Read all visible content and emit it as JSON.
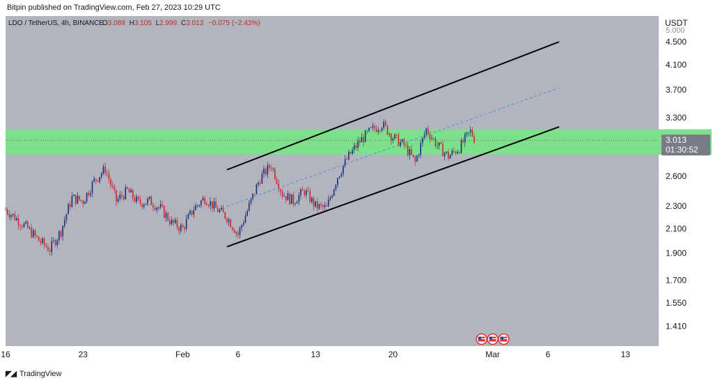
{
  "header": {
    "published": "Bitpin published on TradingView.com, Feb 27, 2023 10:29 UTC"
  },
  "legend": {
    "symbol": "LDO / TetherUS, 4h, BINANCE",
    "o_label": "O",
    "o_value": "3.089",
    "h_label": "H",
    "h_value": "3.105",
    "l_label": "L",
    "l_value": "2.999",
    "c_label": "C",
    "c_value": "3.013",
    "change": "−0.075 (−2.43%)"
  },
  "price_scale": {
    "currency": "USDT",
    "top_partial": "5.000",
    "last_price": "3.013",
    "countdown": "01:30:52"
  },
  "footer": {
    "brand": "TradingView"
  },
  "colors": {
    "background": "#b2b5be",
    "zone": "#7ee08c",
    "up": "#1e2a78",
    "down": "#c62828",
    "last_price_label": "#787b86",
    "channel": "#000000",
    "midline": "#4a90e2"
  },
  "chart_data": {
    "type": "candlestick",
    "title": "",
    "xlabel": "",
    "ylabel": "",
    "scale": "log",
    "ylim": [
      1.3,
      5.0
    ],
    "y_ticks": [
      "4.500",
      "4.100",
      "3.700",
      "3.300",
      "2.600",
      "2.300",
      "2.100",
      "1.900",
      "1.700",
      "1.550",
      "1.410"
    ],
    "x_ticks": [
      {
        "label": "16",
        "date": "2023-01-16"
      },
      {
        "label": "23",
        "date": "2023-01-23"
      },
      {
        "label": "Feb",
        "date": "2023-02-01"
      },
      {
        "label": "6",
        "date": "2023-02-06"
      },
      {
        "label": "13",
        "date": "2023-02-13"
      },
      {
        "label": "20",
        "date": "2023-02-20"
      },
      {
        "label": "Mar",
        "date": "2023-03-01"
      },
      {
        "label": "6",
        "date": "2023-03-06"
      },
      {
        "label": "13",
        "date": "2023-03-13"
      }
    ],
    "xlim": [
      "2023-01-16",
      "2023-03-16"
    ],
    "price_path": [
      [
        "2023-01-16",
        2.27
      ],
      [
        "2023-01-18",
        2.1
      ],
      [
        "2023-01-19",
        2.0
      ],
      [
        "2023-01-20",
        1.93
      ],
      [
        "2023-01-21",
        2.08
      ],
      [
        "2023-01-22",
        2.38
      ],
      [
        "2023-01-23",
        2.35
      ],
      [
        "2023-01-24",
        2.55
      ],
      [
        "2023-01-25",
        2.68
      ],
      [
        "2023-01-26",
        2.35
      ],
      [
        "2023-01-27",
        2.45
      ],
      [
        "2023-01-28",
        2.33
      ],
      [
        "2023-01-29",
        2.35
      ],
      [
        "2023-01-30",
        2.28
      ],
      [
        "2023-01-31",
        2.15
      ],
      [
        "2023-02-01",
        2.1
      ],
      [
        "2023-02-02",
        2.28
      ],
      [
        "2023-02-03",
        2.38
      ],
      [
        "2023-02-04",
        2.28
      ],
      [
        "2023-02-05",
        2.2
      ],
      [
        "2023-02-06",
        2.05
      ],
      [
        "2023-02-07",
        2.3
      ],
      [
        "2023-02-08",
        2.58
      ],
      [
        "2023-02-09",
        2.72
      ],
      [
        "2023-02-10",
        2.42
      ],
      [
        "2023-02-11",
        2.35
      ],
      [
        "2023-02-12",
        2.45
      ],
      [
        "2023-02-13",
        2.3
      ],
      [
        "2023-02-14",
        2.28
      ],
      [
        "2023-02-15",
        2.6
      ],
      [
        "2023-02-16",
        2.82
      ],
      [
        "2023-02-17",
        3.0
      ],
      [
        "2023-02-18",
        3.13
      ],
      [
        "2023-02-19",
        3.22
      ],
      [
        "2023-02-20",
        3.05
      ],
      [
        "2023-02-21",
        2.95
      ],
      [
        "2023-02-22",
        2.75
      ],
      [
        "2023-02-23",
        3.15
      ],
      [
        "2023-02-24",
        2.95
      ],
      [
        "2023-02-25",
        2.82
      ],
      [
        "2023-02-26",
        2.92
      ],
      [
        "2023-02-27",
        3.12
      ],
      [
        "2023-02-27T10",
        3.013
      ]
    ],
    "resistance_zone": {
      "low": 2.84,
      "high": 3.15
    },
    "last_price": 3.013,
    "channel_lower": {
      "start": [
        "2023-02-05",
        1.95
      ],
      "end": [
        "2023-03-07",
        3.18
      ]
    },
    "channel_upper": {
      "start": [
        "2023-02-05",
        2.67
      ],
      "end": [
        "2023-03-07",
        4.5
      ]
    },
    "channel_mid": {
      "start": [
        "2023-02-05",
        2.3
      ],
      "end": [
        "2023-03-07",
        3.73
      ]
    },
    "events": [
      {
        "date": "2023-02-28",
        "icon": "us-flag-icon"
      },
      {
        "date": "2023-03-01",
        "icon": "us-flag-icon"
      },
      {
        "date": "2023-03-02",
        "icon": "us-flag-icon"
      }
    ]
  }
}
